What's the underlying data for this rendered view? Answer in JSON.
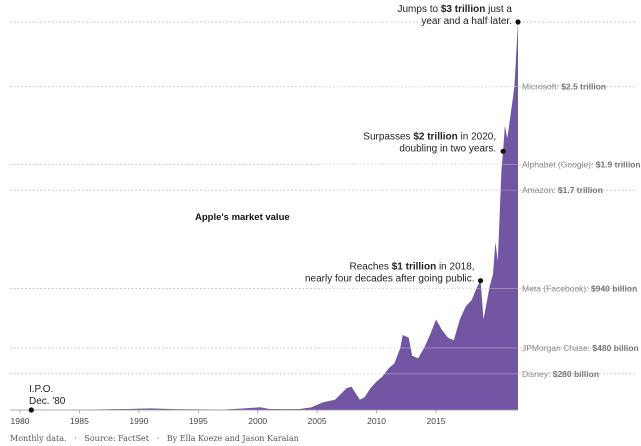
{
  "chart_data": {
    "type": "area",
    "title": "Apple's market value",
    "xlim": [
      1980,
      2021.9
    ],
    "ylim": [
      0,
      3000
    ],
    "x_ticks": [
      "1980",
      "1985",
      "1990",
      "1995",
      "2000",
      "2005",
      "2010",
      "2015"
    ],
    "color": "#7255a3",
    "x": [
      1980.95,
      1983,
      1985,
      1987.5,
      1989,
      1991,
      1993,
      1995,
      1997,
      1998,
      1999.5,
      2000.2,
      2001,
      2002.5,
      2003.5,
      2004.5,
      2005.5,
      2006.5,
      2007.5,
      2007.9,
      2008.3,
      2008.6,
      2009,
      2009.5,
      2010,
      2010.5,
      2011,
      2011.5,
      2012,
      2012.2,
      2012.7,
      2013,
      2013.5,
      2014,
      2014.5,
      2015,
      2015.5,
      2016,
      2016.5,
      2017,
      2017.5,
      2018,
      2018.5,
      2018.75,
      2019,
      2019.5,
      2019.8,
      2020,
      2020.2,
      2020.5,
      2020.65,
      2020.8,
      2021,
      2021.3,
      2021.6,
      2021.9
    ],
    "values": [
      2,
      1,
      1,
      6,
      8,
      12,
      7,
      5,
      3,
      8,
      16,
      22,
      8,
      7,
      8,
      20,
      60,
      80,
      170,
      180,
      120,
      80,
      100,
      170,
      220,
      260,
      320,
      360,
      480,
      580,
      560,
      420,
      400,
      480,
      580,
      700,
      620,
      560,
      540,
      700,
      800,
      850,
      960,
      1000,
      700,
      950,
      1050,
      1300,
      1150,
      1850,
      2000,
      2200,
      2100,
      2300,
      2500,
      3000
    ],
    "reference_lines": [
      {
        "label": "Microsoft:",
        "value_text": "$2.5 trillion",
        "value": 2500
      },
      {
        "label": "Alphabet (Google):",
        "value_text": "$1.9 trillion",
        "value": 1900
      },
      {
        "label": "Amazon:",
        "value_text": "$1.7 trillion",
        "value": 1700
      },
      {
        "label": "Meta (Facebook):",
        "value_text": "$940 billion",
        "value": 940
      },
      {
        "label": "JPMorgan Chase:",
        "value_text": "$480 billion",
        "value": 480
      },
      {
        "label": "Disney:",
        "value_text": "$280 billion",
        "value": 280
      }
    ],
    "annotations": [
      {
        "x": 2021.9,
        "y": 3000,
        "lines": [
          [
            "Jumps to ",
            "$3 trillion",
            " just a"
          ],
          [
            "year and a half later.",
            "",
            ""
          ]
        ]
      },
      {
        "x": 2020.65,
        "y": 2000,
        "lines": [
          [
            "Surpasses ",
            "$2 trillion",
            " in 2020,"
          ],
          [
            "doubling in two years.",
            "",
            ""
          ]
        ]
      },
      {
        "x": 2018.75,
        "y": 1000,
        "lines": [
          [
            "Reaches ",
            "$1 trillion",
            " in 2018,"
          ],
          [
            "nearly four decades after going public.",
            "",
            ""
          ]
        ]
      },
      {
        "x": 1980.95,
        "y": 0,
        "lines": [
          [
            "I.P.O.",
            "",
            ""
          ],
          [
            "Dec. '80",
            "",
            ""
          ]
        ]
      }
    ],
    "footer": "Monthly data.   ·   Source: FactSet   ·   By Ella Koeze and Jason Karaian"
  }
}
